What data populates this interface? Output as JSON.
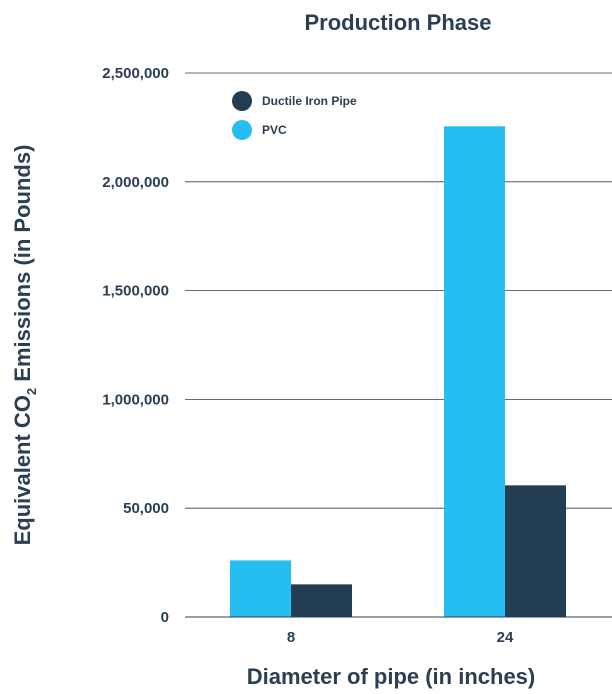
{
  "chart_data": {
    "type": "bar",
    "title": "Production Phase",
    "xlabel": "Diameter of pipe (in inches)",
    "ylabel_parts": [
      "Equivalent CO",
      "2",
      " Emissions (in Pounds)"
    ],
    "categories": [
      "8",
      "24"
    ],
    "y_tick_labels": [
      "0",
      "50,000",
      "1,000,000",
      "1,500,000",
      "2,000,000",
      "2,500,000"
    ],
    "y_tick_count": 5,
    "ylim_note": "tick labels are printed as shown; bar heights read against gridlines",
    "ymax": 2500000,
    "series": [
      {
        "name": "Ductile Iron Pipe",
        "color": "#233d52",
        "values": [
          150000,
          605000
        ]
      },
      {
        "name": "PVC",
        "color": "#26bdf0",
        "values": [
          260000,
          2255000
        ]
      }
    ],
    "legend_position": "top-left",
    "grid": true
  }
}
